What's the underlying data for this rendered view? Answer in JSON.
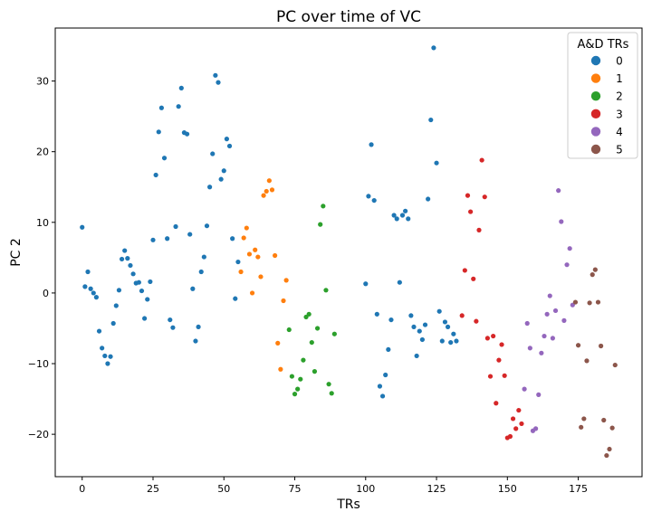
{
  "chart_data": {
    "type": "scatter",
    "title": "PC over time of VC",
    "xlabel": "TRs",
    "ylabel": "PC 2",
    "xlim": [
      -9.5,
      197.5
    ],
    "ylim": [
      -26,
      37.5
    ],
    "xticks": [
      0,
      25,
      50,
      75,
      100,
      125,
      150,
      175
    ],
    "yticks": [
      -20,
      -10,
      0,
      10,
      20,
      30
    ],
    "grid": false,
    "legend": {
      "title": "A&D TRs",
      "position": "top-right"
    },
    "series": [
      {
        "name": "0",
        "color": "#1f77b4",
        "points": [
          [
            0,
            9.3
          ],
          [
            1,
            0.9
          ],
          [
            2,
            3.0
          ],
          [
            3,
            0.6
          ],
          [
            4,
            0.0
          ],
          [
            5,
            -0.6
          ],
          [
            6,
            -5.4
          ],
          [
            7,
            -7.8
          ],
          [
            8,
            -8.9
          ],
          [
            9,
            -10.0
          ],
          [
            10,
            -9.0
          ],
          [
            11,
            -4.3
          ],
          [
            12,
            -1.8
          ],
          [
            13,
            0.4
          ],
          [
            14,
            4.8
          ],
          [
            15,
            6.0
          ],
          [
            16,
            4.9
          ],
          [
            17,
            3.9
          ],
          [
            18,
            2.7
          ],
          [
            19,
            1.4
          ],
          [
            20,
            1.5
          ],
          [
            21,
            0.3
          ],
          [
            22,
            -3.6
          ],
          [
            23,
            -0.9
          ],
          [
            24,
            1.6
          ],
          [
            25,
            7.5
          ],
          [
            26,
            16.7
          ],
          [
            27,
            22.8
          ],
          [
            28,
            26.2
          ],
          [
            29,
            19.1
          ],
          [
            30,
            7.7
          ],
          [
            31,
            -3.8
          ],
          [
            32,
            -4.9
          ],
          [
            33,
            9.4
          ],
          [
            34,
            26.4
          ],
          [
            35,
            29.0
          ],
          [
            36,
            22.7
          ],
          [
            37,
            22.5
          ],
          [
            38,
            8.3
          ],
          [
            39,
            0.6
          ],
          [
            40,
            -6.8
          ],
          [
            41,
            -4.8
          ],
          [
            42,
            3.0
          ],
          [
            43,
            5.1
          ],
          [
            44,
            9.5
          ],
          [
            45,
            15.0
          ],
          [
            46,
            19.7
          ],
          [
            47,
            30.8
          ],
          [
            48,
            29.8
          ],
          [
            49,
            16.1
          ],
          [
            50,
            17.3
          ],
          [
            51,
            21.8
          ],
          [
            52,
            20.8
          ],
          [
            53,
            7.7
          ],
          [
            54,
            -0.8
          ],
          [
            55,
            4.4
          ],
          [
            100,
            1.3
          ],
          [
            101,
            13.7
          ],
          [
            102,
            21.0
          ],
          [
            103,
            13.1
          ],
          [
            104,
            -3.0
          ],
          [
            105,
            -13.2
          ],
          [
            106,
            -14.6
          ],
          [
            107,
            -11.6
          ],
          [
            108,
            -8.0
          ],
          [
            109,
            -3.8
          ],
          [
            110,
            11.0
          ],
          [
            111,
            10.5
          ],
          [
            112,
            1.5
          ],
          [
            113,
            11.0
          ],
          [
            114,
            11.6
          ],
          [
            115,
            10.5
          ],
          [
            116,
            -3.2
          ],
          [
            117,
            -4.8
          ],
          [
            118,
            -8.9
          ],
          [
            119,
            -5.4
          ],
          [
            120,
            -6.6
          ],
          [
            121,
            -4.5
          ],
          [
            122,
            13.3
          ],
          [
            123,
            24.5
          ],
          [
            124,
            34.7
          ],
          [
            125,
            18.4
          ],
          [
            126,
            -2.6
          ],
          [
            127,
            -6.8
          ],
          [
            128,
            -4.1
          ],
          [
            129,
            -4.8
          ],
          [
            130,
            -7.0
          ],
          [
            131,
            -5.8
          ],
          [
            132,
            -6.8
          ]
        ]
      },
      {
        "name": "1",
        "color": "#ff7f0e",
        "points": [
          [
            56,
            3.0
          ],
          [
            57,
            7.8
          ],
          [
            58,
            9.2
          ],
          [
            59,
            5.5
          ],
          [
            60,
            0.0
          ],
          [
            61,
            6.1
          ],
          [
            62,
            5.1
          ],
          [
            63,
            2.3
          ],
          [
            64,
            13.8
          ],
          [
            65,
            14.4
          ],
          [
            66,
            15.9
          ],
          [
            67,
            14.6
          ],
          [
            68,
            5.3
          ],
          [
            69,
            -7.1
          ],
          [
            70,
            -10.8
          ],
          [
            71,
            -1.1
          ],
          [
            72,
            1.8
          ]
        ]
      },
      {
        "name": "2",
        "color": "#2ca02c",
        "points": [
          [
            73,
            -5.2
          ],
          [
            74,
            -11.8
          ],
          [
            75,
            -14.3
          ],
          [
            76,
            -13.6
          ],
          [
            77,
            -12.2
          ],
          [
            78,
            -9.5
          ],
          [
            79,
            -3.4
          ],
          [
            80,
            -3.0
          ],
          [
            81,
            -7.0
          ],
          [
            82,
            -11.1
          ],
          [
            83,
            -5.0
          ],
          [
            84,
            9.7
          ],
          [
            85,
            12.3
          ],
          [
            86,
            0.4
          ],
          [
            87,
            -12.9
          ],
          [
            88,
            -14.2
          ],
          [
            89,
            -5.8
          ]
        ]
      },
      {
        "name": "3",
        "color": "#d62728",
        "points": [
          [
            134,
            -3.2
          ],
          [
            135,
            3.2
          ],
          [
            136,
            13.8
          ],
          [
            137,
            11.5
          ],
          [
            138,
            2.0
          ],
          [
            139,
            -4.0
          ],
          [
            140,
            8.9
          ],
          [
            141,
            18.8
          ],
          [
            142,
            13.6
          ],
          [
            143,
            -6.4
          ],
          [
            144,
            -11.8
          ],
          [
            145,
            -6.1
          ],
          [
            146,
            -15.6
          ],
          [
            147,
            -9.5
          ],
          [
            148,
            -7.3
          ],
          [
            149,
            -11.7
          ],
          [
            150,
            -20.5
          ],
          [
            151,
            -20.3
          ],
          [
            152,
            -17.8
          ],
          [
            153,
            -19.2
          ],
          [
            154,
            -16.6
          ],
          [
            155,
            -18.5
          ]
        ]
      },
      {
        "name": "4",
        "color": "#9467bd",
        "points": [
          [
            156,
            -13.6
          ],
          [
            157,
            -4.3
          ],
          [
            158,
            -7.8
          ],
          [
            159,
            -19.5
          ],
          [
            160,
            -19.2
          ],
          [
            161,
            -14.4
          ],
          [
            162,
            -8.5
          ],
          [
            163,
            -6.1
          ],
          [
            164,
            -3.0
          ],
          [
            165,
            -0.4
          ],
          [
            166,
            -6.4
          ],
          [
            167,
            -2.5
          ],
          [
            168,
            14.5
          ],
          [
            169,
            10.1
          ],
          [
            170,
            -3.9
          ],
          [
            171,
            4.0
          ],
          [
            172,
            6.3
          ],
          [
            173,
            -1.7
          ]
        ]
      },
      {
        "name": "5",
        "color": "#8c564b",
        "points": [
          [
            174,
            -1.3
          ],
          [
            175,
            -7.4
          ],
          [
            176,
            -19.0
          ],
          [
            177,
            -17.8
          ],
          [
            178,
            -9.6
          ],
          [
            179,
            -1.4
          ],
          [
            180,
            2.6
          ],
          [
            181,
            3.3
          ],
          [
            182,
            -1.3
          ],
          [
            183,
            -7.5
          ],
          [
            184,
            -18.0
          ],
          [
            185,
            -23.0
          ],
          [
            186,
            -22.1
          ],
          [
            187,
            -19.1
          ],
          [
            188,
            -10.2
          ]
        ]
      }
    ]
  }
}
